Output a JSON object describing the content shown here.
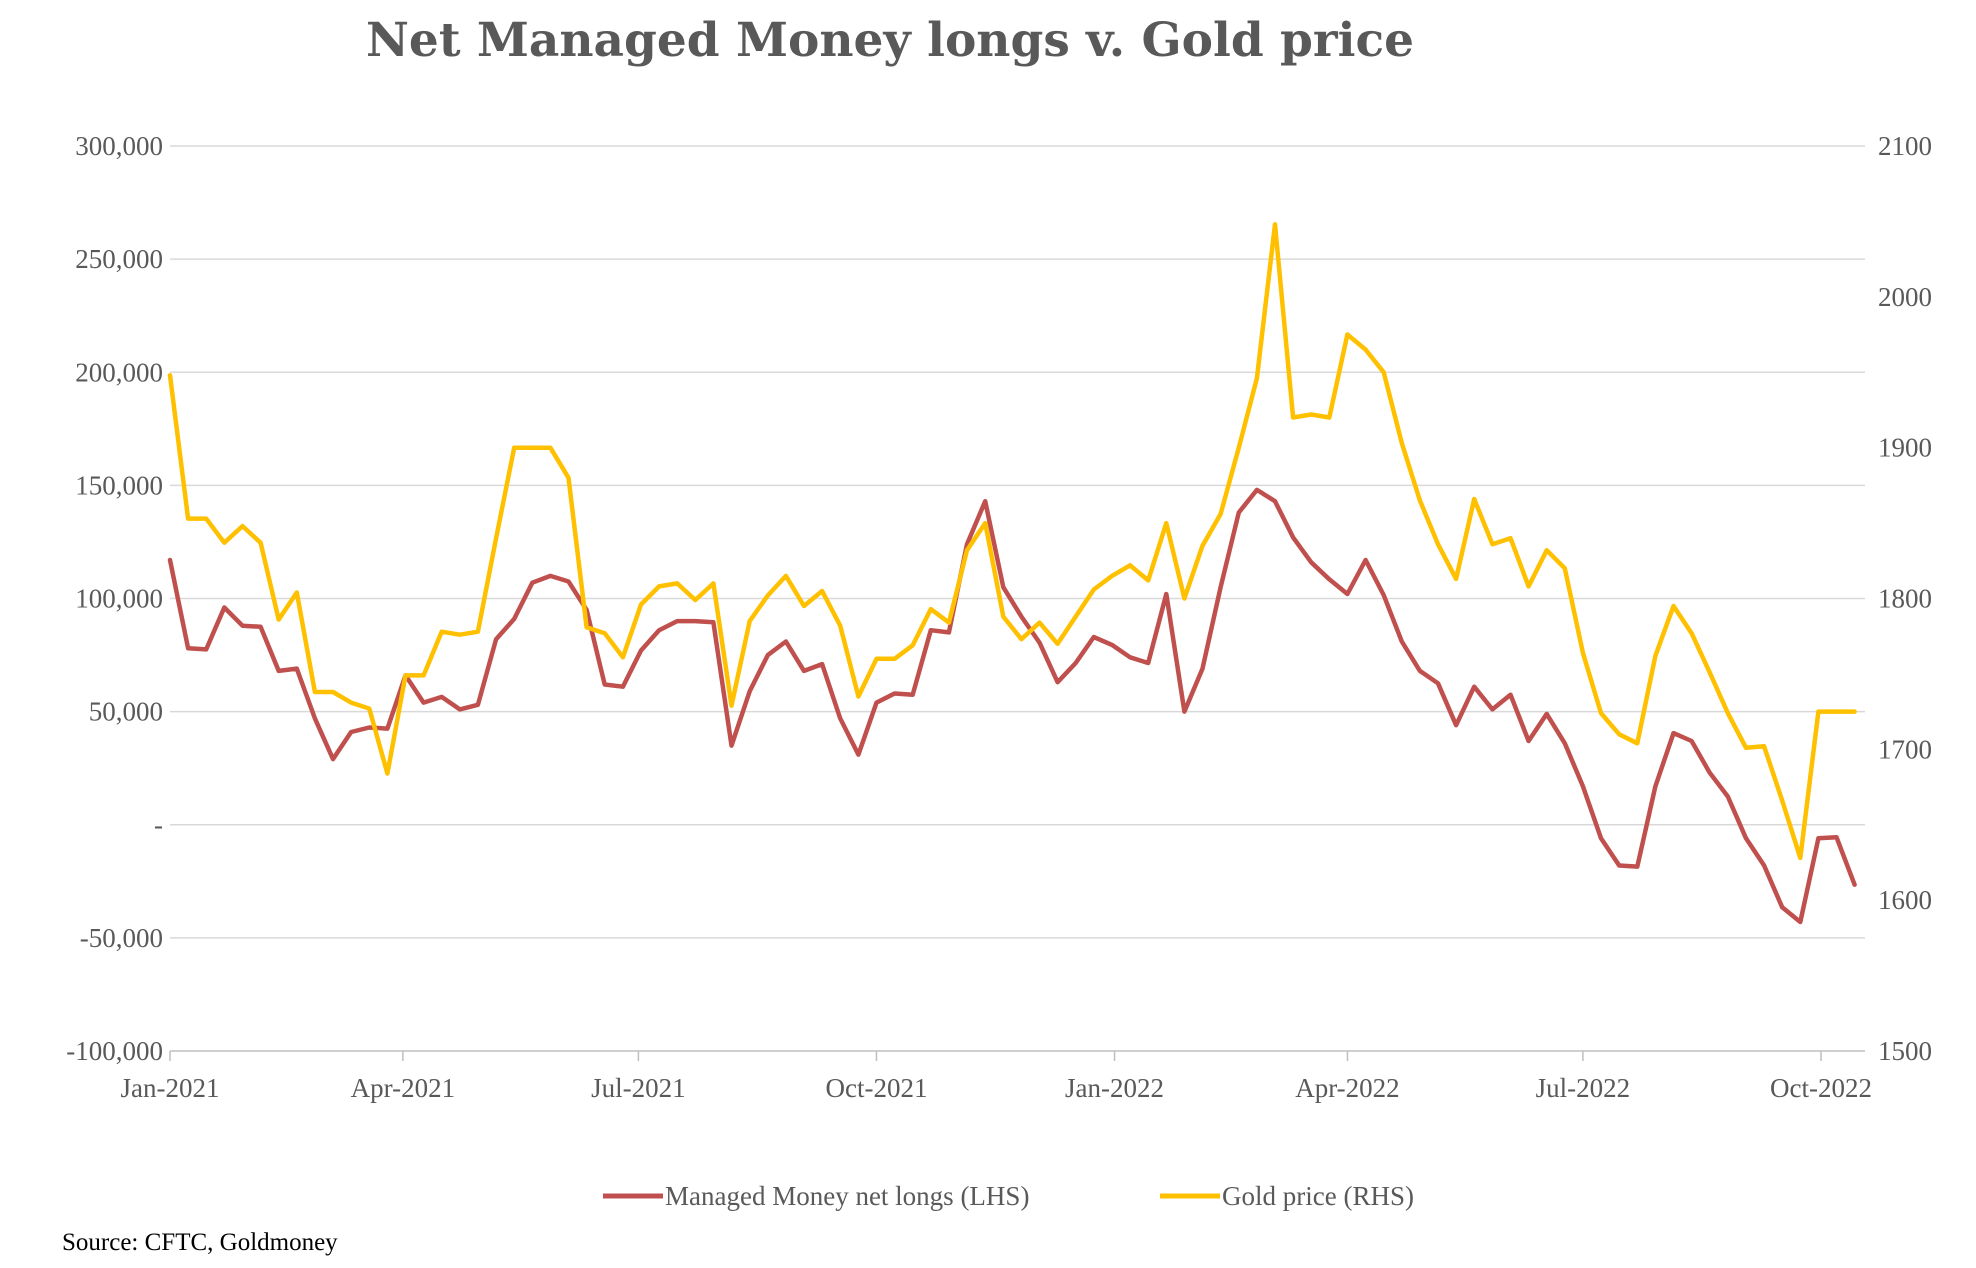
{
  "source": "Source: CFTC, Goldmoney",
  "colors": {
    "mm": "#c0504d",
    "gold": "#ffc000",
    "text": "#595959",
    "grid": "#d9d9d9"
  },
  "chart_data": {
    "type": "line",
    "title": "Net Managed Money longs v. Gold price",
    "xlabel": "",
    "x_tick_labels": [
      "Jan-2021",
      "Apr-2021",
      "Jul-2021",
      "Oct-2021",
      "Jan-2022",
      "Apr-2022",
      "Jul-2022",
      "Oct-2022"
    ],
    "x_tick_dates": [
      "2021-01-01",
      "2021-04-01",
      "2021-07-01",
      "2021-10-01",
      "2022-01-01",
      "2022-04-01",
      "2022-07-01",
      "2022-10-01"
    ],
    "x_start": "2021-01-01",
    "x_end": "2022-10-18",
    "y_left": {
      "label": "",
      "ylim": [
        -100000,
        300000
      ],
      "tick_labels": [
        "-100,000",
        "-50,000",
        "-",
        "50,000",
        "100,000",
        "150,000",
        "200,000",
        "250,000",
        "300,000"
      ],
      "tick_values": [
        -100000,
        -50000,
        0,
        50000,
        100000,
        150000,
        200000,
        250000,
        300000
      ]
    },
    "y_right": {
      "label": "",
      "ylim": [
        1500,
        2100
      ],
      "tick_labels": [
        "1500",
        "1600",
        "1700",
        "1800",
        "1900",
        "2000",
        "2100"
      ],
      "tick_values": [
        1500,
        1600,
        1700,
        1800,
        1900,
        2000,
        2100
      ]
    },
    "grid": true,
    "legend": "bottom",
    "series": [
      {
        "name": "Managed Money net longs (LHS)",
        "axis": "left",
        "color": "#c0504d",
        "x": [
          "2021-01-01",
          "2021-01-08",
          "2021-01-15",
          "2021-01-22",
          "2021-01-29",
          "2021-02-05",
          "2021-02-12",
          "2021-02-19",
          "2021-02-26",
          "2021-03-05",
          "2021-03-12",
          "2021-03-19",
          "2021-03-26",
          "2021-04-02",
          "2021-04-09",
          "2021-04-16",
          "2021-04-23",
          "2021-04-30",
          "2021-05-07",
          "2021-05-14",
          "2021-05-21",
          "2021-05-28",
          "2021-06-04",
          "2021-06-11",
          "2021-06-18",
          "2021-06-25",
          "2021-07-02",
          "2021-07-09",
          "2021-07-16",
          "2021-07-23",
          "2021-07-30",
          "2021-08-06",
          "2021-08-13",
          "2021-08-20",
          "2021-08-27",
          "2021-09-03",
          "2021-09-10",
          "2021-09-17",
          "2021-09-24",
          "2021-10-01",
          "2021-10-08",
          "2021-10-15",
          "2021-10-22",
          "2021-10-29",
          "2021-11-05",
          "2021-11-12",
          "2021-11-19",
          "2021-11-26",
          "2021-12-03",
          "2021-12-10",
          "2021-12-17",
          "2021-12-24",
          "2021-12-31",
          "2022-01-07",
          "2022-01-14",
          "2022-01-21",
          "2022-01-28",
          "2022-02-04",
          "2022-02-11",
          "2022-02-18",
          "2022-02-25",
          "2022-03-04",
          "2022-03-11",
          "2022-03-18",
          "2022-03-25",
          "2022-04-01",
          "2022-04-08",
          "2022-04-15",
          "2022-04-22",
          "2022-04-29",
          "2022-05-06",
          "2022-05-13",
          "2022-05-20",
          "2022-05-27",
          "2022-06-03",
          "2022-06-10",
          "2022-06-17",
          "2022-06-24",
          "2022-07-01",
          "2022-07-08",
          "2022-07-15",
          "2022-07-22",
          "2022-07-29",
          "2022-08-05",
          "2022-08-12",
          "2022-08-19",
          "2022-08-26",
          "2022-09-02",
          "2022-09-09",
          "2022-09-16",
          "2022-09-23",
          "2022-09-30",
          "2022-10-07",
          "2022-10-14"
        ],
        "values": [
          117000,
          78000,
          77500,
          96000,
          88000,
          87500,
          68000,
          69000,
          47000,
          29000,
          41000,
          43000,
          42500,
          66000,
          54000,
          56500,
          51000,
          53000,
          82000,
          91000,
          107000,
          110000,
          107500,
          95000,
          62000,
          61000,
          77000,
          86000,
          90000,
          90000,
          89500,
          35000,
          59000,
          75000,
          81000,
          68000,
          71000,
          47000,
          31000,
          54000,
          58000,
          57500,
          86000,
          85000,
          124000,
          143000,
          105000,
          92000,
          80500,
          63000,
          71500,
          83000,
          79500,
          74000,
          71500,
          102000,
          50000,
          69000,
          105000,
          138000,
          148000,
          143000,
          127000,
          116000,
          108500,
          102000,
          117000,
          101500,
          81000,
          68000,
          62500,
          44000,
          61000,
          51000,
          57500,
          37000,
          49000,
          36000,
          17000,
          -6000,
          -18000,
          -18500,
          17000,
          40500,
          37000,
          23000,
          12500,
          -6000,
          -18000,
          -36500,
          -43000,
          -6000,
          -5500,
          -26500
        ]
      },
      {
        "name": "Gold price (RHS)",
        "axis": "right",
        "color": "#ffc000",
        "x": [
          "2021-01-01",
          "2021-01-08",
          "2021-01-15",
          "2021-01-22",
          "2021-01-29",
          "2021-02-05",
          "2021-02-12",
          "2021-02-19",
          "2021-02-26",
          "2021-03-05",
          "2021-03-12",
          "2021-03-19",
          "2021-03-26",
          "2021-04-02",
          "2021-04-09",
          "2021-04-16",
          "2021-04-23",
          "2021-04-30",
          "2021-05-07",
          "2021-05-14",
          "2021-05-21",
          "2021-05-28",
          "2021-06-04",
          "2021-06-11",
          "2021-06-18",
          "2021-06-25",
          "2021-07-02",
          "2021-07-09",
          "2021-07-16",
          "2021-07-23",
          "2021-07-30",
          "2021-08-06",
          "2021-08-13",
          "2021-08-20",
          "2021-08-27",
          "2021-09-03",
          "2021-09-10",
          "2021-09-17",
          "2021-09-24",
          "2021-10-01",
          "2021-10-08",
          "2021-10-15",
          "2021-10-22",
          "2021-10-29",
          "2021-11-05",
          "2021-11-12",
          "2021-11-19",
          "2021-11-26",
          "2021-12-03",
          "2021-12-10",
          "2021-12-17",
          "2021-12-24",
          "2021-12-31",
          "2022-01-07",
          "2022-01-14",
          "2022-01-21",
          "2022-01-28",
          "2022-02-04",
          "2022-02-11",
          "2022-02-18",
          "2022-02-25",
          "2022-03-04",
          "2022-03-11",
          "2022-03-18",
          "2022-03-25",
          "2022-04-01",
          "2022-04-08",
          "2022-04-15",
          "2022-04-22",
          "2022-04-29",
          "2022-05-06",
          "2022-05-13",
          "2022-05-20",
          "2022-05-27",
          "2022-06-03",
          "2022-06-10",
          "2022-06-17",
          "2022-06-24",
          "2022-07-01",
          "2022-07-08",
          "2022-07-15",
          "2022-07-22",
          "2022-07-29",
          "2022-08-05",
          "2022-08-12",
          "2022-08-19",
          "2022-08-26",
          "2022-09-02",
          "2022-09-09",
          "2022-09-16",
          "2022-09-23",
          "2022-09-30",
          "2022-10-07",
          "2022-10-14"
        ],
        "values": [
          1948,
          1853,
          1853,
          1837,
          1848,
          1837,
          1786,
          1804,
          1738,
          1738,
          1731,
          1727,
          1684,
          1749,
          1749,
          1778,
          1776,
          1778,
          1840,
          1900,
          1900,
          1900,
          1880,
          1781,
          1777,
          1761,
          1796,
          1808,
          1810,
          1799,
          1810,
          1729,
          1785,
          1802,
          1815,
          1795,
          1805,
          1782,
          1735,
          1760,
          1760,
          1769,
          1793,
          1784,
          1832,
          1850,
          1788,
          1773,
          1784,
          1770,
          1788,
          1806,
          1815,
          1822,
          1812,
          1850,
          1800,
          1835,
          1856,
          1900,
          1946,
          2048,
          1920,
          1922,
          1920,
          1975,
          1965,
          1950,
          1903,
          1865,
          1836,
          1813,
          1866,
          1836,
          1840,
          1808,
          1832,
          1820,
          1764,
          1724,
          1710,
          1704,
          1762,
          1795,
          1777,
          1751,
          1724,
          1701,
          1702,
          1666,
          1628,
          1725,
          1725,
          1725
        ]
      }
    ]
  }
}
